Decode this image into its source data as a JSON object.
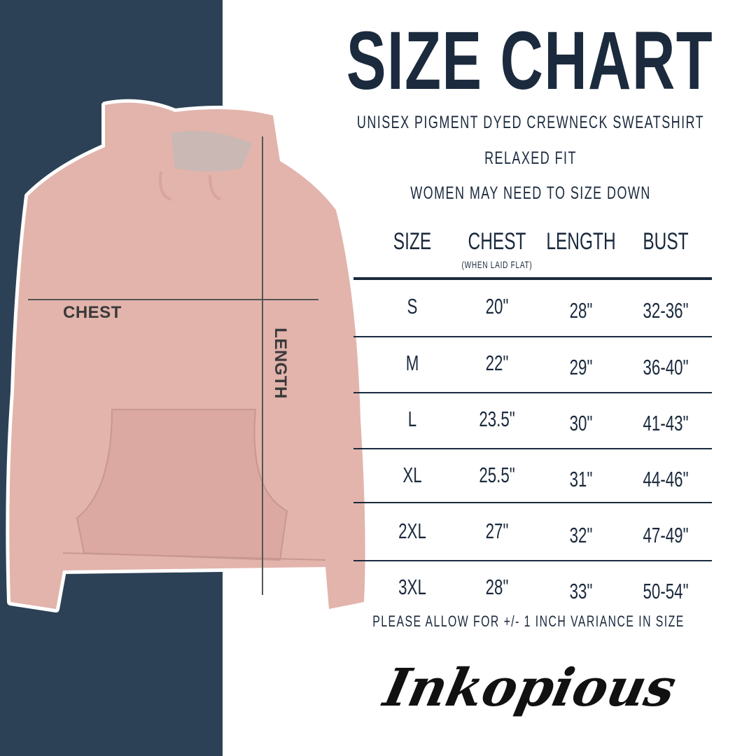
{
  "title": "SIZE CHART",
  "subtitle_lines": [
    "UNISEX PIGMENT DYED CREWNECK SWEATSHIRT",
    "RELAXED FIT",
    "WOMEN MAY NEED TO SIZE DOWN"
  ],
  "table": {
    "headers": [
      "SIZE",
      "CHEST",
      "LENGTH",
      "BUST"
    ],
    "chest_note": "(WHEN LAID FLAT)",
    "rows": [
      [
        "S",
        "20\"",
        "28\"",
        "32-36\""
      ],
      [
        "M",
        "22\"",
        "29\"",
        "36-40\""
      ],
      [
        "L",
        "23.5\"",
        "30\"",
        "41-43\""
      ],
      [
        "XL",
        "25.5\"",
        "31\"",
        "44-46\""
      ],
      [
        "2XL",
        "27\"",
        "32\"",
        "47-49\""
      ],
      [
        "3XL",
        "28\"",
        "33\"",
        "50-54\""
      ]
    ]
  },
  "footnote": "PLEASE ALLOW FOR +/- 1 INCH VARIANCE IN SIZE",
  "image_labels": {
    "chest": "CHEST",
    "length": "LENGTH"
  },
  "logo": "Inkopious",
  "colors": {
    "panel": "#2c4155",
    "text": "#1b2a3d",
    "hoodie": "#e2b4ac"
  }
}
